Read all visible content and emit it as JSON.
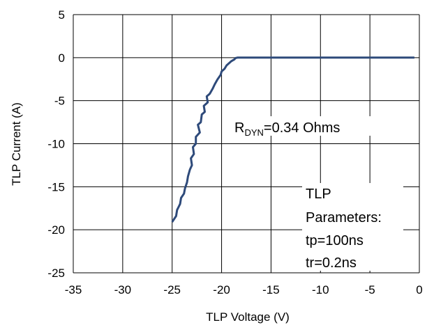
{
  "chart_data": {
    "type": "line",
    "title": "",
    "xlabel": "TLP Voltage (V)",
    "ylabel": "TLP Current (A)",
    "xlim": [
      -35,
      0
    ],
    "ylim": [
      -25,
      5
    ],
    "xticks": [
      "-35",
      "-30",
      "-25",
      "-20",
      "-15",
      "-10",
      "-5",
      "0"
    ],
    "yticks": [
      "5",
      "0",
      "-5",
      "-10",
      "-15",
      "-20",
      "-25"
    ],
    "grid": true,
    "legend": "none",
    "series": [
      {
        "color": "#2e4a7a",
        "x": [
          -25.0,
          -24.6,
          -24.5,
          -24.2,
          -24.1,
          -23.8,
          -23.7,
          -23.5,
          -23.4,
          -23.2,
          -23.0,
          -23.1,
          -22.8,
          -22.9,
          -22.6,
          -22.6,
          -22.2,
          -22.4,
          -22.1,
          -22.0,
          -21.7,
          -21.8,
          -21.4,
          -21.5,
          -21.2,
          -20.9,
          -20.7,
          -20.4,
          -20.1,
          -20.0,
          -19.7,
          -19.5,
          -19.2,
          -19.0,
          -18.7,
          -18.6,
          -18.4,
          -18.3,
          -18.0,
          -17.8,
          -15,
          -10,
          -5,
          -0.5
        ],
        "y": [
          -19.1,
          -18.4,
          -17.7,
          -17.0,
          -16.3,
          -15.8,
          -15.2,
          -14.5,
          -13.8,
          -13.0,
          -12.5,
          -11.7,
          -11.2,
          -10.4,
          -10.0,
          -9.2,
          -8.7,
          -7.8,
          -7.5,
          -6.6,
          -6.3,
          -5.6,
          -5.2,
          -4.5,
          -4.2,
          -3.6,
          -3.1,
          -2.5,
          -2.0,
          -1.6,
          -1.3,
          -0.9,
          -0.6,
          -0.4,
          -0.2,
          -0.05,
          0,
          0,
          0,
          0,
          0,
          0,
          0,
          0
        ]
      }
    ],
    "annotations": {
      "rdyn_main": "R",
      "rdyn_sub": "DYN",
      "rdyn_rest": "=0.34 Ohms",
      "params": [
        "TLP",
        "Parameters:",
        "tp=100ns",
        "tr=0.2ns"
      ]
    }
  }
}
